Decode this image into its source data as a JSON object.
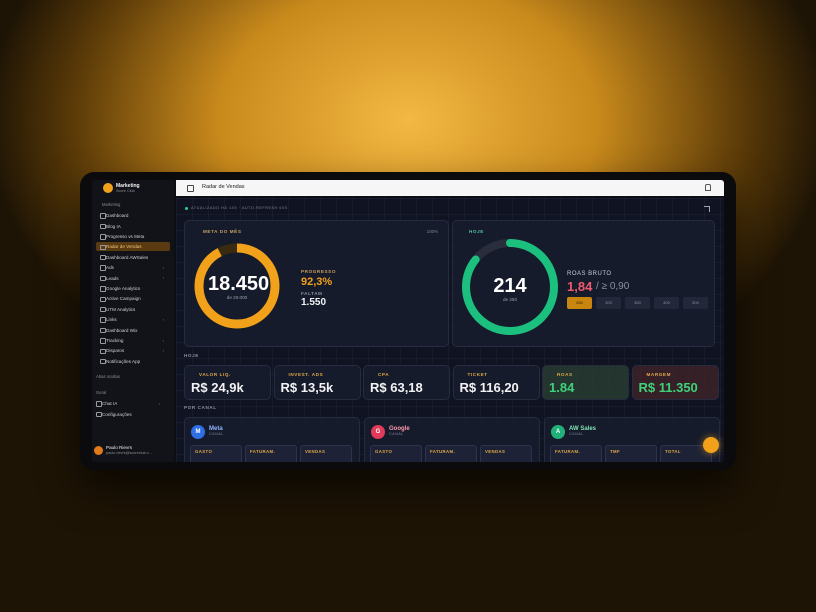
{
  "sidebar": {
    "brand": "Marketing",
    "brand_sub": "Score Club",
    "section_marketing": "Marketing",
    "nav": [
      "Dashboard",
      "Blog IA",
      "Progresso vs Meta",
      "Radar de Vendas",
      "Dashboard AWSales",
      "Ads",
      "Leads",
      "Google Analytics",
      "Active Campaign",
      "UTM Analytics",
      "Links",
      "Dashboard Wix",
      "Tracking",
      "Disparos",
      "Notificações App"
    ],
    "hidden_tabs": "Abas ocultas",
    "section_general": "Geral",
    "general_nav": [
      "Chat IA",
      "Configurações"
    ],
    "user_name": "Paulo Rievrs",
    "user_email": "paulo.rievrs@scoreclub.c..."
  },
  "header": {
    "title": "Radar de Vendas"
  },
  "status": "ATUALIZADO HÁ 14S · AUTO-REFRESH 60S",
  "month_goal": {
    "title": "META DO MÊS",
    "percent_label": "100%",
    "value": "18.450",
    "target": "de 20.000",
    "progress_label": "PROGRESSO",
    "progress": "92,3%",
    "remaining_label": "FALTAM",
    "remaining": "1.550"
  },
  "today_goal": {
    "title": "HOJE",
    "value": "214",
    "target": "de 250",
    "roas_label": "ROAS BRUTO",
    "roas": "1,84",
    "roas_min": "/ ≥ 0,90",
    "targets": [
      "250",
      "300",
      "350",
      "400",
      "500"
    ]
  },
  "today_label": "HOJE",
  "kpis": [
    {
      "label": "VALOR LIQ.",
      "value": "R$ 24,9k"
    },
    {
      "label": "INVEST. ADS",
      "value": "R$ 13,5k"
    },
    {
      "label": "CPA",
      "value": "R$ 63,18"
    },
    {
      "label": "TICKET",
      "value": "R$ 116,20"
    },
    {
      "label": "ROAS",
      "value": "1.84"
    },
    {
      "label": "MARGEM",
      "value": "R$ 11.350"
    }
  ],
  "channels_label": "POR CANAL",
  "channels": [
    {
      "initial": "M",
      "name": "Meta",
      "sub": "CANAL",
      "metrics": [
        "GASTO",
        "FATURAM.",
        "VENDAS"
      ]
    },
    {
      "initial": "G",
      "name": "Google",
      "sub": "CANAL",
      "metrics": [
        "GASTO",
        "FATURAM.",
        "VENDAS"
      ]
    },
    {
      "initial": "A",
      "name": "AW Sales",
      "sub": "CANAL",
      "metrics": [
        "FATURAM.",
        "TMF",
        "TOTAL"
      ]
    }
  ]
}
